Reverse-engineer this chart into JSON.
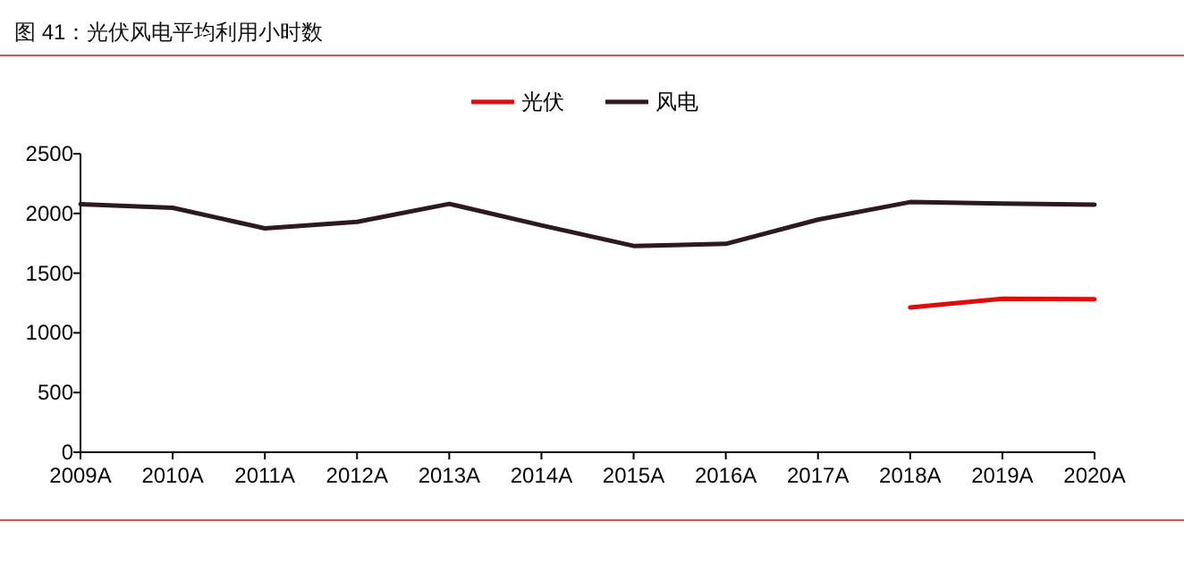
{
  "chart_data": {
    "type": "line",
    "title": "图 41：光伏风电平均利用小时数",
    "categories": [
      "2009A",
      "2010A",
      "2011A",
      "2012A",
      "2013A",
      "2014A",
      "2015A",
      "2016A",
      "2017A",
      "2018A",
      "2019A",
      "2020A"
    ],
    "series": [
      {
        "name": "光伏",
        "color": "#e00b0b",
        "values": [
          null,
          null,
          null,
          null,
          null,
          null,
          null,
          null,
          null,
          1212,
          1285,
          1281
        ]
      },
      {
        "name": "风电",
        "color": "#2d1a1c",
        "values": [
          2077,
          2047,
          1875,
          1929,
          2080,
          1900,
          1728,
          1745,
          1948,
          2095,
          2082,
          2073
        ]
      }
    ],
    "ylim": [
      0,
      2500
    ],
    "yticks": [
      0,
      500,
      1000,
      1500,
      2000,
      2500
    ],
    "legend": "top",
    "grid": false
  }
}
